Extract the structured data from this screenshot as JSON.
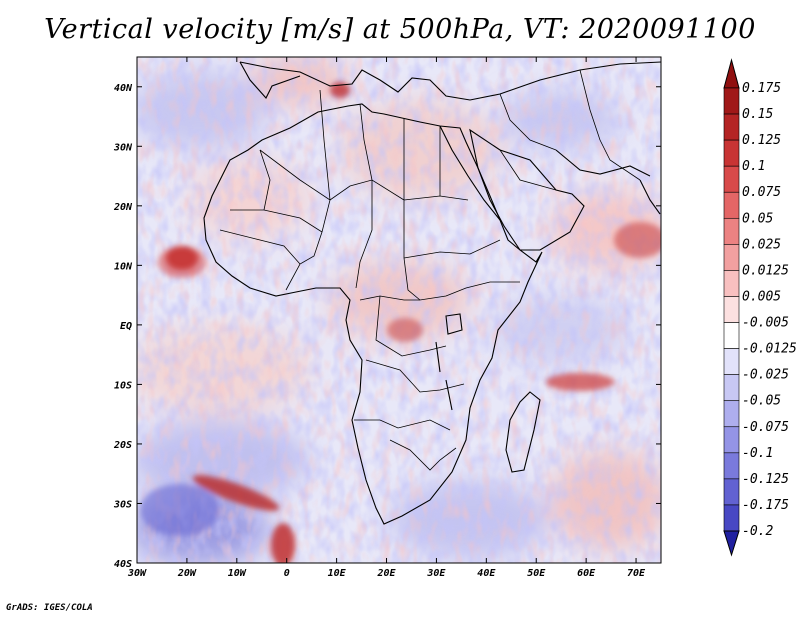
{
  "title": "Vertical velocity [m/s] at 500hPa, VT: 2020091100",
  "credit": "GrADS: IGES/COLA",
  "map": {
    "projection": "lat-lon",
    "lon_range": [
      -30,
      75
    ],
    "lat_range": [
      -40,
      45
    ],
    "lon_ticks": [
      {
        "lon": -30,
        "label": "30W"
      },
      {
        "lon": -20,
        "label": "20W"
      },
      {
        "lon": -10,
        "label": "10W"
      },
      {
        "lon": 0,
        "label": "0"
      },
      {
        "lon": 10,
        "label": "10E"
      },
      {
        "lon": 20,
        "label": "20E"
      },
      {
        "lon": 30,
        "label": "30E"
      },
      {
        "lon": 40,
        "label": "40E"
      },
      {
        "lon": 50,
        "label": "50E"
      },
      {
        "lon": 60,
        "label": "60E"
      },
      {
        "lon": 70,
        "label": "70E"
      }
    ],
    "lat_ticks": [
      {
        "lat": 40,
        "label": "40N"
      },
      {
        "lat": 30,
        "label": "30N"
      },
      {
        "lat": 20,
        "label": "20N"
      },
      {
        "lat": 10,
        "label": "10N"
      },
      {
        "lat": 0,
        "label": "EQ"
      },
      {
        "lat": -10,
        "label": "10S"
      },
      {
        "lat": -20,
        "label": "20S"
      },
      {
        "lat": -30,
        "label": "30S"
      },
      {
        "lat": -40,
        "label": "40S"
      }
    ]
  },
  "chart_data": {
    "type": "heatmap",
    "variable": "Vertical velocity",
    "units": "m/s",
    "level": "500hPa",
    "valid_time": "2020091100",
    "colorbar": [
      {
        "label": "0.175",
        "color": "#a01818"
      },
      {
        "label": "0.15",
        "color": "#b42424"
      },
      {
        "label": "0.125",
        "color": "#c83434"
      },
      {
        "label": "0.1",
        "color": "#d84a4a"
      },
      {
        "label": "0.075",
        "color": "#e46666"
      },
      {
        "label": "0.05",
        "color": "#ec8282"
      },
      {
        "label": "0.025",
        "color": "#f2a0a0"
      },
      {
        "label": "0.0125",
        "color": "#f8c0c0"
      },
      {
        "label": "0.005",
        "color": "#fce0e0"
      },
      {
        "label": "-0.005",
        "color": "#ffffff"
      },
      {
        "label": "-0.0125",
        "color": "#e2e2fa"
      },
      {
        "label": "-0.025",
        "color": "#c8c8f4"
      },
      {
        "label": "-0.05",
        "color": "#aeaeee"
      },
      {
        "label": "-0.075",
        "color": "#9494e6"
      },
      {
        "label": "-0.1",
        "color": "#7a7adc"
      },
      {
        "label": "-0.125",
        "color": "#6262d2"
      },
      {
        "label": "-0.175",
        "color": "#4848c4"
      },
      {
        "label": "-0.2",
        "color": "#3232b4"
      }
    ],
    "colorbar_ends": {
      "top_color": "#901010",
      "bottom_color": "#2020a0"
    },
    "features": [
      {
        "name": "strong ascent off Guinea coast",
        "lon": -17,
        "lat": 10,
        "value": 0.15
      },
      {
        "name": "ascent Indian Ocean",
        "lon": 57,
        "lat": -10,
        "value": 0.125
      },
      {
        "name": "descent/ascent band South Atlantic",
        "lon": -15,
        "lat": -32,
        "value": 0.15
      },
      {
        "name": "ascent Arabian Sea",
        "lon": 70,
        "lat": 13,
        "value": 0.1
      }
    ]
  }
}
